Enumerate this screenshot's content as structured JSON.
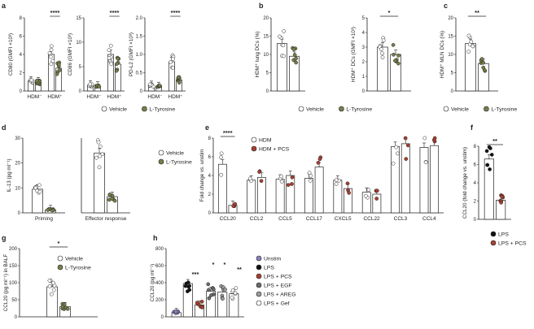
{
  "colors": {
    "vehicle": "#ffffff",
    "tyrosine": "#7a7d4a",
    "hdm": "#ffffff",
    "hdm_pcs": "#a84030",
    "stroke": "#222222",
    "lps_black": "#111111",
    "unstim": "#8c80c0",
    "egf": "#6a6a6a",
    "areg": "#9a9a9a",
    "gef": "#ffffff"
  },
  "chart_data": [
    {
      "panel": "a",
      "id": "a1",
      "type": "bar",
      "ylabel": "CD80 (GMFI ×10³)",
      "ylim": [
        0,
        8
      ],
      "yticks": [
        "0",
        "2",
        "4",
        "6",
        "8"
      ],
      "groups": [
        "HDM⁻",
        "HDM⁺"
      ],
      "series": [
        {
          "name": "Vehicle",
          "values": [
            1.1,
            4.0
          ]
        },
        {
          "name": "L-Tyrosine",
          "values": [
            1.0,
            2.5
          ]
        }
      ],
      "significance": [
        {
          "label": "****",
          "group": 1
        }
      ]
    },
    {
      "panel": "",
      "id": "a2",
      "type": "bar",
      "ylabel": "CD86 (GMFI ×10³)",
      "ylim": [
        0,
        15
      ],
      "yticks": [
        "0",
        "5",
        "10",
        "15"
      ],
      "groups": [
        "HDM⁻",
        "HDM⁺"
      ],
      "series": [
        {
          "name": "Vehicle",
          "values": [
            1.2,
            7.5
          ]
        },
        {
          "name": "L-Tyrosine",
          "values": [
            1.0,
            5.5
          ]
        }
      ],
      "significance": [
        {
          "label": "****",
          "group": 1
        }
      ]
    },
    {
      "panel": "",
      "id": "a3",
      "type": "bar",
      "ylabel": "PD-L2 (GMFI ×10³)",
      "ylim": [
        0,
        2.0
      ],
      "yticks": [
        "0",
        "0.5",
        "1.0",
        "1.5",
        "2.0"
      ],
      "groups": [
        "HDM⁻",
        "HDM⁺"
      ],
      "series": [
        {
          "name": "Vehicle",
          "values": [
            0.15,
            0.8
          ]
        },
        {
          "name": "L-Tyrosine",
          "values": [
            0.12,
            0.3
          ]
        }
      ],
      "significance": [
        {
          "label": "****",
          "group": 1
        }
      ]
    },
    {
      "panel": "b",
      "id": "b1",
      "type": "bar",
      "ylabel": "HDM⁺ lung DCs (%)",
      "ylim": [
        0,
        20
      ],
      "yticks": [
        "0",
        "5",
        "10",
        "15",
        "20"
      ],
      "groups": [
        ""
      ],
      "series": [
        {
          "name": "Vehicle",
          "values": [
            13
          ]
        },
        {
          "name": "L-Tyrosine",
          "values": [
            9.5
          ]
        }
      ],
      "significance": []
    },
    {
      "panel": "",
      "id": "b2",
      "type": "bar",
      "ylabel": "HDM⁺ DCs (GMFI ×10³)",
      "ylim": [
        0,
        5
      ],
      "yticks": [
        "0",
        "1",
        "2",
        "3",
        "4",
        "5"
      ],
      "groups": [
        ""
      ],
      "series": [
        {
          "name": "Vehicle",
          "values": [
            3.0
          ]
        },
        {
          "name": "L-Tyrosine",
          "values": [
            2.5
          ]
        }
      ],
      "significance": [
        {
          "label": "*",
          "group": 0
        }
      ]
    },
    {
      "panel": "c",
      "id": "c1",
      "type": "bar",
      "ylabel": "HDM⁺ MLN DCs (%)",
      "ylim": [
        0,
        20
      ],
      "yticks": [
        "0",
        "5",
        "10",
        "15",
        "20"
      ],
      "groups": [
        ""
      ],
      "series": [
        {
          "name": "Vehicle",
          "values": [
            13
          ]
        },
        {
          "name": "L-Tyrosine",
          "values": [
            7.5
          ]
        }
      ],
      "significance": [
        {
          "label": "**",
          "group": 0
        }
      ]
    },
    {
      "panel": "d",
      "id": "d1",
      "type": "bar",
      "ylabel": "IL-13 (pg ml⁻¹)",
      "ylim": [
        0,
        30
      ],
      "yticks": [
        "0",
        "10",
        "20",
        "30"
      ],
      "groups": [
        "Priming"
      ],
      "series": [
        {
          "name": "Vehicle",
          "values": [
            9.5
          ]
        },
        {
          "name": "L-Tyrosine",
          "values": [
            1.2
          ]
        }
      ],
      "significance": []
    },
    {
      "panel": "",
      "id": "d2",
      "type": "bar",
      "ylabel": "",
      "ylim": [
        0,
        30
      ],
      "yticks": [],
      "groups": [
        "Effector response"
      ],
      "series": [
        {
          "name": "Vehicle",
          "values": [
            24
          ]
        },
        {
          "name": "L-Tyrosine",
          "values": [
            6.5
          ]
        }
      ],
      "significance": []
    },
    {
      "panel": "e",
      "id": "e1",
      "type": "bar",
      "ylabel": "Fold change vs. unstim",
      "ylim": [
        0,
        8
      ],
      "yticks": [
        "0",
        "2",
        "4",
        "6",
        "8"
      ],
      "groups": [
        "CCL20",
        "CCL2",
        "CCL5",
        "CCL17",
        "CXCL5",
        "CCL22",
        "CCL3",
        "CCL4"
      ],
      "series": [
        {
          "name": "HDM",
          "values": [
            5.2,
            3.5,
            3.6,
            3.7,
            3.5,
            2.2,
            7.1,
            7.0
          ]
        },
        {
          "name": "HDM + PCS",
          "values": [
            0.8,
            3.8,
            4.0,
            4.9,
            2.6,
            2.0,
            7.4,
            7.2
          ]
        }
      ],
      "significance": [
        {
          "label": "****",
          "group": 0
        }
      ]
    },
    {
      "panel": "f",
      "id": "f1",
      "type": "bar",
      "ylabel": "CCL20 (fold change vs. unstim)",
      "ylim": [
        0,
        8
      ],
      "yticks": [
        "0",
        "2",
        "4",
        "6",
        "8"
      ],
      "groups": [
        ""
      ],
      "series": [
        {
          "name": "LPS",
          "values": [
            6.6
          ]
        },
        {
          "name": "LPS + PCS",
          "values": [
            2.1
          ]
        }
      ],
      "significance": [
        {
          "label": "**",
          "group": 0
        }
      ]
    },
    {
      "panel": "g",
      "id": "g1",
      "type": "bar",
      "ylabel": "CCL20 (pg ml⁻¹) in BALF",
      "ylim": [
        0,
        200
      ],
      "yticks": [
        "0",
        "50",
        "100",
        "150",
        "200"
      ],
      "groups": [
        ""
      ],
      "series": [
        {
          "name": "Vehicle",
          "values": [
            88
          ]
        },
        {
          "name": "L-Tyrosine",
          "values": [
            30
          ]
        }
      ],
      "significance": [
        {
          "label": "*",
          "group": 0
        }
      ]
    },
    {
      "panel": "h",
      "id": "h1",
      "type": "bar",
      "ylabel": "CCL20 (pg ml⁻¹)",
      "ylim": [
        0,
        800
      ],
      "yticks": [
        "0",
        "200",
        "400",
        "600",
        "800"
      ],
      "groups": [
        ""
      ],
      "series": [
        {
          "name": "Unstim",
          "values": [
            50
          ]
        },
        {
          "name": "LPS",
          "values": [
            390
          ]
        },
        {
          "name": "LPS + PCS",
          "values": [
            140
          ]
        },
        {
          "name": "LPS + EGF",
          "values": [
            300
          ]
        },
        {
          "name": "LPS + AREG",
          "values": [
            290
          ]
        },
        {
          "name": "LPS + Gef",
          "values": [
            270
          ]
        }
      ],
      "significance": [
        {
          "label": "***",
          "group": 0
        },
        {
          "label": "*",
          "group": 0
        },
        {
          "label": "*",
          "group": 0
        },
        {
          "label": "**",
          "group": 0
        }
      ]
    }
  ],
  "legends": {
    "ab": [
      "Vehicle",
      "L-Tyrosine"
    ],
    "c": [
      "Vehicle",
      "L-Tyrosine"
    ],
    "d": [
      "Vehicle",
      "L-Tyrosine"
    ],
    "e": [
      "HDM",
      "HDM + PCS"
    ],
    "f": [
      "LPS",
      "LPS + PCS"
    ],
    "g": [
      "Vehicle",
      "L-Tyrosine"
    ],
    "h": [
      "Unstim",
      "LPS",
      "LPS + PCS",
      "LPS + EGF",
      "LPS + AREG",
      "LPS + Gef"
    ]
  },
  "panel_labels": [
    "a",
    "b",
    "c",
    "d",
    "e",
    "f",
    "g",
    "h"
  ]
}
